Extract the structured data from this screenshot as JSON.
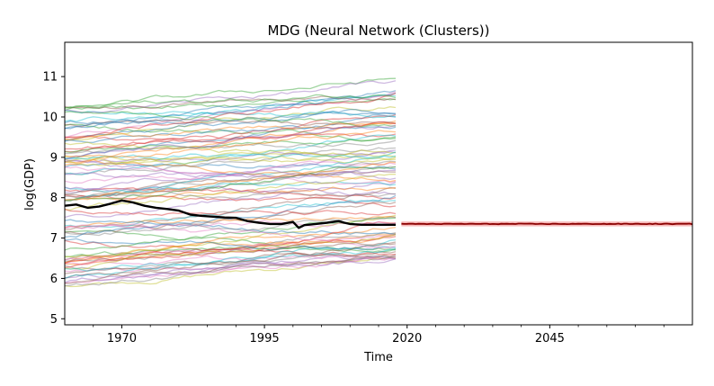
{
  "chart_data": {
    "type": "line",
    "title": "MDG (Neural Network (Clusters))",
    "xlabel": "Time",
    "ylabel": "log(GDP)",
    "xlim": [
      1960,
      2070
    ],
    "ylim": [
      4.85,
      11.85
    ],
    "xticks": [
      1970,
      1995,
      2020,
      2045
    ],
    "xticklabels": [
      "1970",
      "1995",
      "2020",
      "2045"
    ],
    "yticks": [
      5,
      6,
      7,
      8,
      9,
      10,
      11
    ],
    "yticklabels": [
      "5",
      "6",
      "7",
      "8",
      "9",
      "10",
      "11"
    ],
    "grid": false,
    "legend": "none",
    "background_series": {
      "count": 95,
      "x_range": [
        1960,
        2018
      ],
      "start_range": [
        5.8,
        10.3
      ],
      "end_range": [
        6.5,
        11.35
      ],
      "alpha": 0.45,
      "colors": [
        "#1f77b4",
        "#ff7f0e",
        "#2ca02c",
        "#d62728",
        "#9467bd",
        "#8c564b",
        "#e377c2",
        "#7f7f7f",
        "#bcbd22",
        "#17becf"
      ]
    },
    "highlight_series": {
      "color": "#000000",
      "x": [
        1960,
        1962,
        1964,
        1966,
        1968,
        1970,
        1972,
        1974,
        1976,
        1978,
        1980,
        1982,
        1984,
        1986,
        1988,
        1990,
        1992,
        1994,
        1996,
        1998,
        2000,
        2001,
        2002,
        2004,
        2006,
        2008,
        2009,
        2010,
        2012,
        2014,
        2016,
        2018
      ],
      "y": [
        7.8,
        7.83,
        7.75,
        7.78,
        7.85,
        7.93,
        7.88,
        7.8,
        7.75,
        7.72,
        7.68,
        7.58,
        7.55,
        7.53,
        7.51,
        7.5,
        7.42,
        7.38,
        7.35,
        7.35,
        7.4,
        7.25,
        7.32,
        7.35,
        7.38,
        7.42,
        7.38,
        7.35,
        7.33,
        7.33,
        7.33,
        7.33
      ]
    },
    "forecast": {
      "color": "#8b0000",
      "band_color": "#f08080",
      "x_range": [
        2019,
        2070
      ],
      "mean": 7.35,
      "band_halfwidth": 0.06
    }
  }
}
